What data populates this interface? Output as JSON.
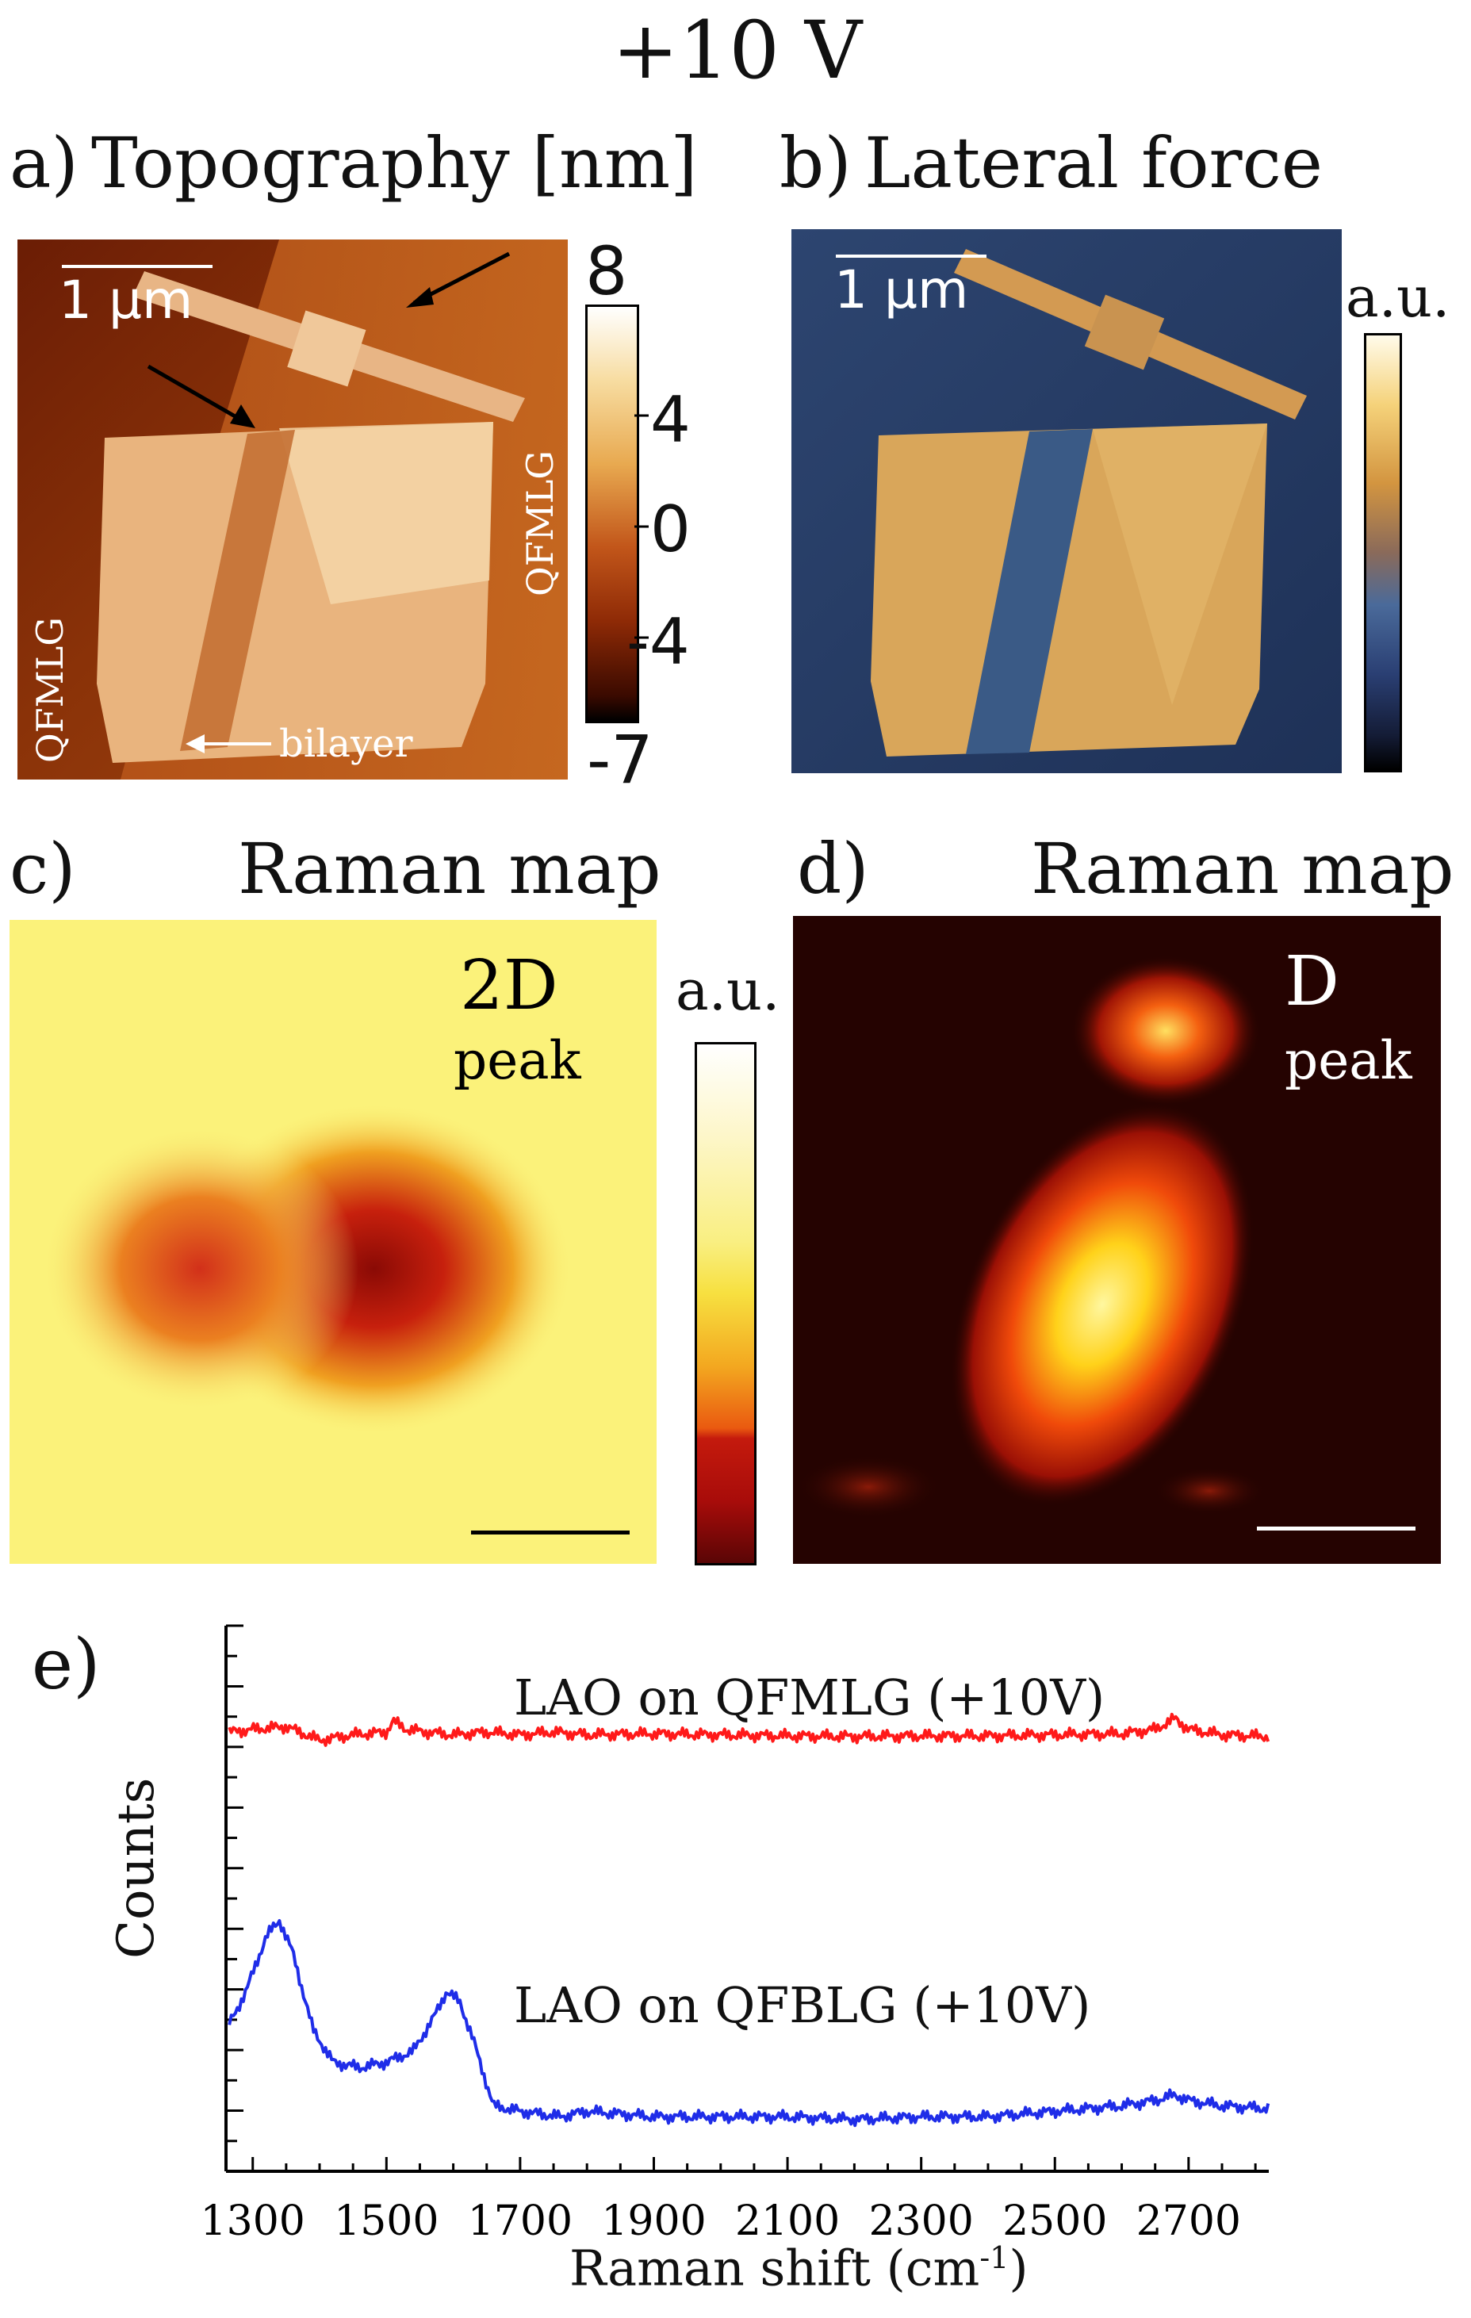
{
  "figure_title": "+10 V",
  "panel_a": {
    "label": "a)",
    "title": "Topography [nm]",
    "scale_bar": "1 μm",
    "annotation_left": "QFMLG",
    "annotation_right": "QFMLG",
    "annotation_bilayer": "bilayer",
    "colorbar_ticks": [
      "8",
      "4",
      "0",
      "-4",
      "-7"
    ]
  },
  "panel_b": {
    "label": "b)",
    "title": "Lateral force",
    "scale_bar": "1 μm",
    "colorbar_unit": "a.u."
  },
  "panel_c": {
    "label": "c)",
    "title": "Raman map",
    "peak_name": "2D",
    "peak_word": "peak",
    "colorbar_unit": "a.u."
  },
  "panel_d": {
    "label": "d)",
    "title": "Raman map",
    "peak_name": "D",
    "peak_word": "peak"
  },
  "panel_e": {
    "label": "e)"
  },
  "colors": {
    "red_series": "#ff1a1a",
    "blue_series": "#1f2de8"
  },
  "chart_data": {
    "type": "line",
    "xlabel": "Raman shift (cm",
    "xlabel_sup": "-1",
    "xlabel_close": ")",
    "ylabel": "Counts",
    "xlim": [
      1260,
      2820
    ],
    "x_ticks": [
      1300,
      1500,
      1700,
      1900,
      2100,
      2300,
      2500,
      2700
    ],
    "y_ticks_count": 18,
    "series": [
      {
        "name": "LAO on QFMLG (+10V)",
        "color": "#ff1a1a",
        "x": [
          1265,
          1300,
          1350,
          1400,
          1450,
          1500,
          1510,
          1530,
          1560,
          1600,
          1650,
          1700,
          1750,
          1800,
          1900,
          2000,
          2100,
          2200,
          2300,
          2400,
          2500,
          2600,
          2650,
          2680,
          2700,
          2750,
          2820
        ],
        "y": [
          0.805,
          0.81,
          0.815,
          0.79,
          0.8,
          0.805,
          0.825,
          0.81,
          0.805,
          0.8,
          0.805,
          0.8,
          0.805,
          0.8,
          0.802,
          0.8,
          0.798,
          0.797,
          0.798,
          0.798,
          0.8,
          0.802,
          0.81,
          0.83,
          0.81,
          0.8,
          0.797
        ]
      },
      {
        "name": "LAO on QFBLG (+10V)",
        "color": "#1f2de8",
        "x": [
          1265,
          1290,
          1320,
          1340,
          1360,
          1390,
          1420,
          1460,
          1500,
          1540,
          1570,
          1590,
          1610,
          1630,
          1660,
          1700,
          1760,
          1800,
          1900,
          2000,
          2100,
          2200,
          2300,
          2400,
          2500,
          2600,
          2650,
          2680,
          2700,
          2750,
          2820
        ],
        "y": [
          0.27,
          0.33,
          0.43,
          0.46,
          0.4,
          0.26,
          0.2,
          0.19,
          0.2,
          0.22,
          0.28,
          0.33,
          0.31,
          0.24,
          0.12,
          0.11,
          0.1,
          0.11,
          0.1,
          0.1,
          0.1,
          0.095,
          0.1,
          0.1,
          0.11,
          0.12,
          0.13,
          0.14,
          0.13,
          0.12,
          0.115
        ]
      }
    ]
  }
}
